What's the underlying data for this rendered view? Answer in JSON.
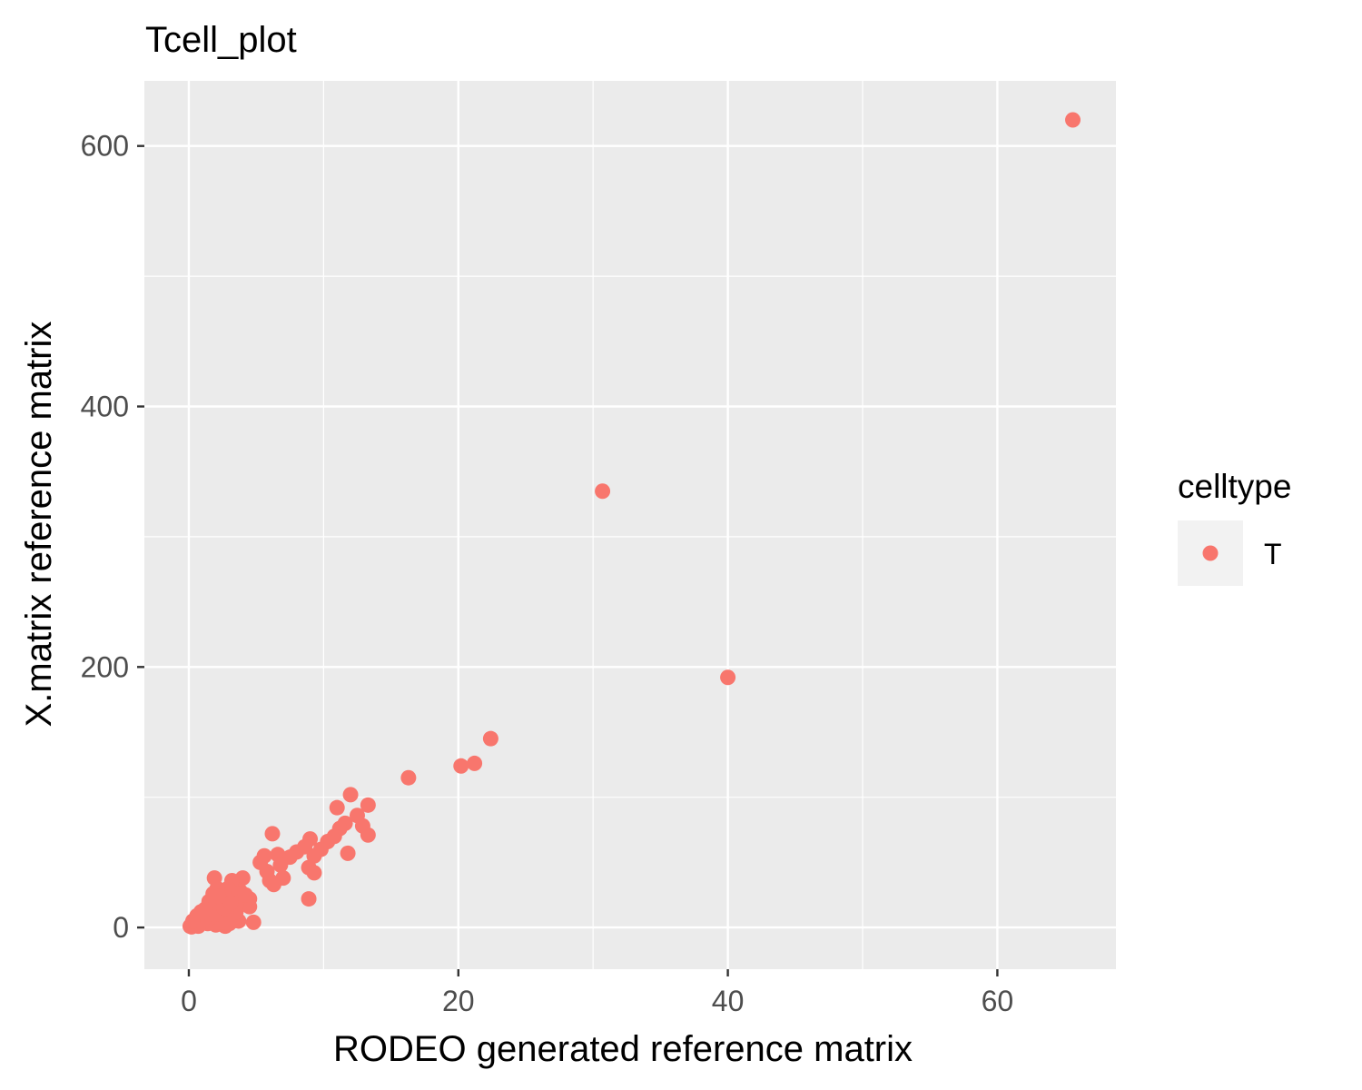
{
  "chart_data": {
    "type": "scatter",
    "title": "Tcell_plot",
    "xlabel": "RODEO generated reference matrix",
    "ylabel": "X.matrix reference matrix",
    "xlim": [
      -3.3,
      68.8
    ],
    "ylim": [
      -32,
      650
    ],
    "x_ticks": [
      0,
      20,
      40,
      60
    ],
    "y_ticks": [
      0,
      200,
      400,
      600
    ],
    "x_tick_labels": [
      "0",
      "20",
      "40",
      "60"
    ],
    "y_tick_labels": [
      "0",
      "200",
      "400",
      "600"
    ],
    "grid": true,
    "panel_background": "#ebebeb",
    "grid_color": "#ffffff",
    "point_color": "#f8766d",
    "legend": {
      "title": "celltype",
      "position": "right",
      "entries": [
        {
          "label": "T",
          "color": "#f8766d"
        }
      ]
    },
    "series": [
      {
        "name": "T",
        "points": [
          [
            65.6,
            620
          ],
          [
            30.7,
            335
          ],
          [
            40.0,
            192
          ],
          [
            22.4,
            145
          ],
          [
            21.2,
            126
          ],
          [
            20.2,
            124
          ],
          [
            16.3,
            115
          ],
          [
            12.0,
            102
          ],
          [
            13.3,
            94
          ],
          [
            11.0,
            92
          ],
          [
            12.5,
            86
          ],
          [
            11.6,
            80
          ],
          [
            12.9,
            78
          ],
          [
            11.2,
            76
          ],
          [
            13.3,
            71
          ],
          [
            10.8,
            70
          ],
          [
            6.2,
            72
          ],
          [
            9.0,
            68
          ],
          [
            8.6,
            62
          ],
          [
            10.3,
            66
          ],
          [
            9.8,
            60
          ],
          [
            11.8,
            57
          ],
          [
            9.3,
            55
          ],
          [
            8.0,
            58
          ],
          [
            7.5,
            54
          ],
          [
            8.9,
            46
          ],
          [
            9.3,
            42
          ],
          [
            6.6,
            56
          ],
          [
            5.6,
            55
          ],
          [
            5.3,
            50
          ],
          [
            6.8,
            48
          ],
          [
            5.8,
            43
          ],
          [
            7.0,
            38
          ],
          [
            6.0,
            36
          ],
          [
            6.3,
            33
          ],
          [
            8.9,
            22
          ],
          [
            4.0,
            38
          ],
          [
            3.8,
            28
          ],
          [
            4.5,
            22
          ],
          [
            4.5,
            16
          ],
          [
            3.7,
            5
          ],
          [
            4.8,
            4
          ],
          [
            1.9,
            38
          ],
          [
            3.2,
            36
          ],
          [
            2.9,
            30
          ],
          [
            3.0,
            25
          ],
          [
            2.6,
            21
          ],
          [
            2.2,
            18
          ],
          [
            1.8,
            13
          ],
          [
            1.5,
            11
          ],
          [
            2.5,
            8
          ],
          [
            3.3,
            5
          ],
          [
            1.2,
            7
          ],
          [
            1.0,
            4
          ],
          [
            0.8,
            3
          ],
          [
            0.5,
            2
          ],
          [
            0.3,
            1
          ],
          [
            0.2,
            0.5
          ],
          [
            0.6,
            6
          ],
          [
            1.4,
            3
          ],
          [
            2.0,
            2
          ],
          [
            2.7,
            1
          ],
          [
            3.5,
            12
          ],
          [
            3.7,
            26
          ],
          [
            2.4,
            14
          ],
          [
            1.6,
            16
          ],
          [
            1.1,
            9
          ],
          [
            0.9,
            12
          ],
          [
            0.4,
            4
          ],
          [
            0.1,
            1
          ],
          [
            1.8,
            26
          ],
          [
            2.1,
            30
          ],
          [
            3.5,
            17
          ],
          [
            2.8,
            10
          ],
          [
            1.3,
            5
          ],
          [
            0.7,
            1
          ],
          [
            2.3,
            4
          ],
          [
            3.0,
            3
          ],
          [
            1.7,
            8
          ],
          [
            1.9,
            10
          ],
          [
            2.6,
            15
          ],
          [
            3.1,
            19
          ],
          [
            4.2,
            25
          ],
          [
            1.5,
            20
          ],
          [
            0.6,
            9
          ],
          [
            0.3,
            5
          ],
          [
            2.2,
            24
          ],
          [
            1.2,
            14
          ]
        ]
      }
    ]
  }
}
